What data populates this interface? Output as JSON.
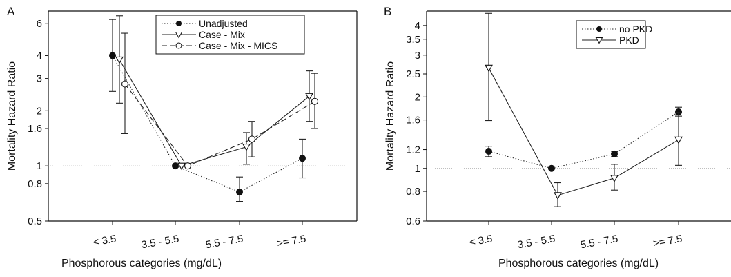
{
  "chart_data": [
    {
      "panel_label": "A",
      "type": "line",
      "xlabel": "Phosphorous categories (mg/dL)",
      "ylabel": "Mortality Hazard Ratio",
      "y_scale": "log",
      "ylim": [
        0.5,
        7
      ],
      "y_ticks": [
        0.5,
        0.8,
        1,
        1.6,
        2,
        3,
        4,
        6
      ],
      "y_tick_labels": [
        "0.5",
        "0.8",
        "1",
        "1.6",
        "2",
        "3",
        "4",
        "6"
      ],
      "categories": [
        "< 3.5",
        "3.5 - 5.5",
        "5.5 - 7.5",
        ">= 7.5"
      ],
      "reference_line": 1,
      "legend_position": "top-center",
      "series": [
        {
          "name": "Unadjusted",
          "line": "dotted",
          "marker": "filled-circle",
          "values": [
            4.0,
            1.0,
            0.72,
            1.1
          ],
          "ci_low": [
            2.55,
            null,
            0.64,
            0.86
          ],
          "ci_high": [
            6.3,
            null,
            0.87,
            1.4
          ]
        },
        {
          "name": "Case - Mix",
          "line": "solid",
          "marker": "open-triangle",
          "values": [
            3.8,
            1.0,
            1.27,
            2.4
          ],
          "ci_low": [
            2.2,
            null,
            1.02,
            1.75
          ],
          "ci_high": [
            6.6,
            null,
            1.52,
            3.3
          ]
        },
        {
          "name": "Case - Mix - MICS",
          "line": "dashed",
          "marker": "open-circle",
          "values": [
            2.8,
            1.0,
            1.4,
            2.25
          ],
          "ci_low": [
            1.5,
            null,
            1.12,
            1.6
          ],
          "ci_high": [
            5.3,
            null,
            1.75,
            3.2
          ]
        }
      ]
    },
    {
      "panel_label": "B",
      "type": "line",
      "xlabel": "Phosphorous categories (mg/dL)",
      "ylabel": "Mortality Hazard Ratio",
      "y_scale": "log",
      "ylim": [
        0.6,
        4.6
      ],
      "y_ticks": [
        0.6,
        0.8,
        1,
        1.2,
        1.6,
        2,
        2.5,
        3,
        3.5,
        4
      ],
      "y_tick_labels": [
        "0.6",
        "0.8",
        "1",
        "1.2",
        "1.6",
        "2",
        "2.5",
        "3",
        "3.5",
        "4"
      ],
      "categories": [
        "< 3.5",
        "3.5 - 5.5",
        "5.5 - 7.5",
        ">= 7.5"
      ],
      "reference_line": 1,
      "legend_position": "top-center",
      "series": [
        {
          "name": "no PKD",
          "line": "dotted",
          "marker": "filled-circle",
          "values": [
            1.18,
            1.0,
            1.15,
            1.73
          ],
          "ci_low": [
            1.12,
            null,
            1.12,
            1.66
          ],
          "ci_high": [
            1.24,
            null,
            1.18,
            1.81
          ]
        },
        {
          "name": "PKD",
          "line": "solid",
          "marker": "open-triangle",
          "values": [
            2.65,
            0.77,
            0.91,
            1.32
          ],
          "ci_low": [
            1.59,
            0.69,
            0.81,
            1.03
          ],
          "ci_high": [
            4.5,
            0.87,
            1.04,
            1.72
          ]
        }
      ]
    }
  ]
}
